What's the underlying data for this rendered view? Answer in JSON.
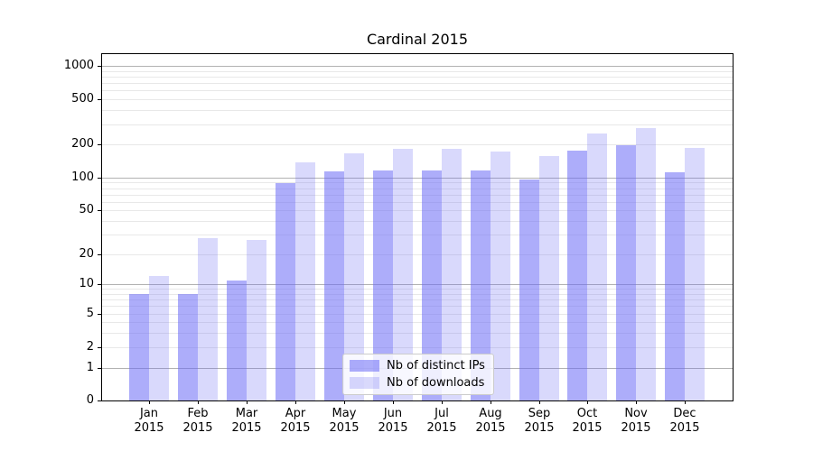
{
  "chart_data": {
    "type": "bar",
    "title": "Cardinal 2015",
    "xlabel": "",
    "ylabel": "",
    "year": "2015",
    "months": [
      "Jan",
      "Feb",
      "Mar",
      "Apr",
      "May",
      "Jun",
      "Jul",
      "Aug",
      "Sep",
      "Oct",
      "Nov",
      "Dec"
    ],
    "categories": [
      "Jan 2015",
      "Feb 2015",
      "Mar 2015",
      "Apr 2015",
      "May 2015",
      "Jun 2015",
      "Jul 2015",
      "Aug 2015",
      "Sep 2015",
      "Oct 2015",
      "Nov 2015",
      "Dec 2015"
    ],
    "series": [
      {
        "name": "Nb of distinct IPs",
        "color": "rgba(105,105,245,0.55)",
        "values": [
          8,
          8,
          11,
          90,
          115,
          116,
          117,
          117,
          97,
          175,
          196,
          112
        ]
      },
      {
        "name": "Nb of downloads",
        "color": "rgba(105,105,245,0.25)",
        "values": [
          12,
          28,
          27,
          138,
          166,
          184,
          184,
          171,
          158,
          250,
          280,
          185
        ]
      }
    ],
    "yscale": "symlog",
    "ylim": [
      0,
      1300
    ],
    "ytick_values": [
      0,
      1,
      2,
      5,
      10,
      20,
      50,
      100,
      200,
      500,
      1000
    ],
    "ytick_labels": [
      "0",
      "1",
      "2",
      "5",
      "10",
      "20",
      "50",
      "100",
      "200",
      "500",
      "1000"
    ],
    "grid": "horizontal",
    "legend_position": "lower center",
    "colors": {
      "bar_base": "#6969f5",
      "grid_major": "#b2b2b2",
      "grid_minor": "#e8e8e8",
      "axis": "#000000"
    }
  }
}
